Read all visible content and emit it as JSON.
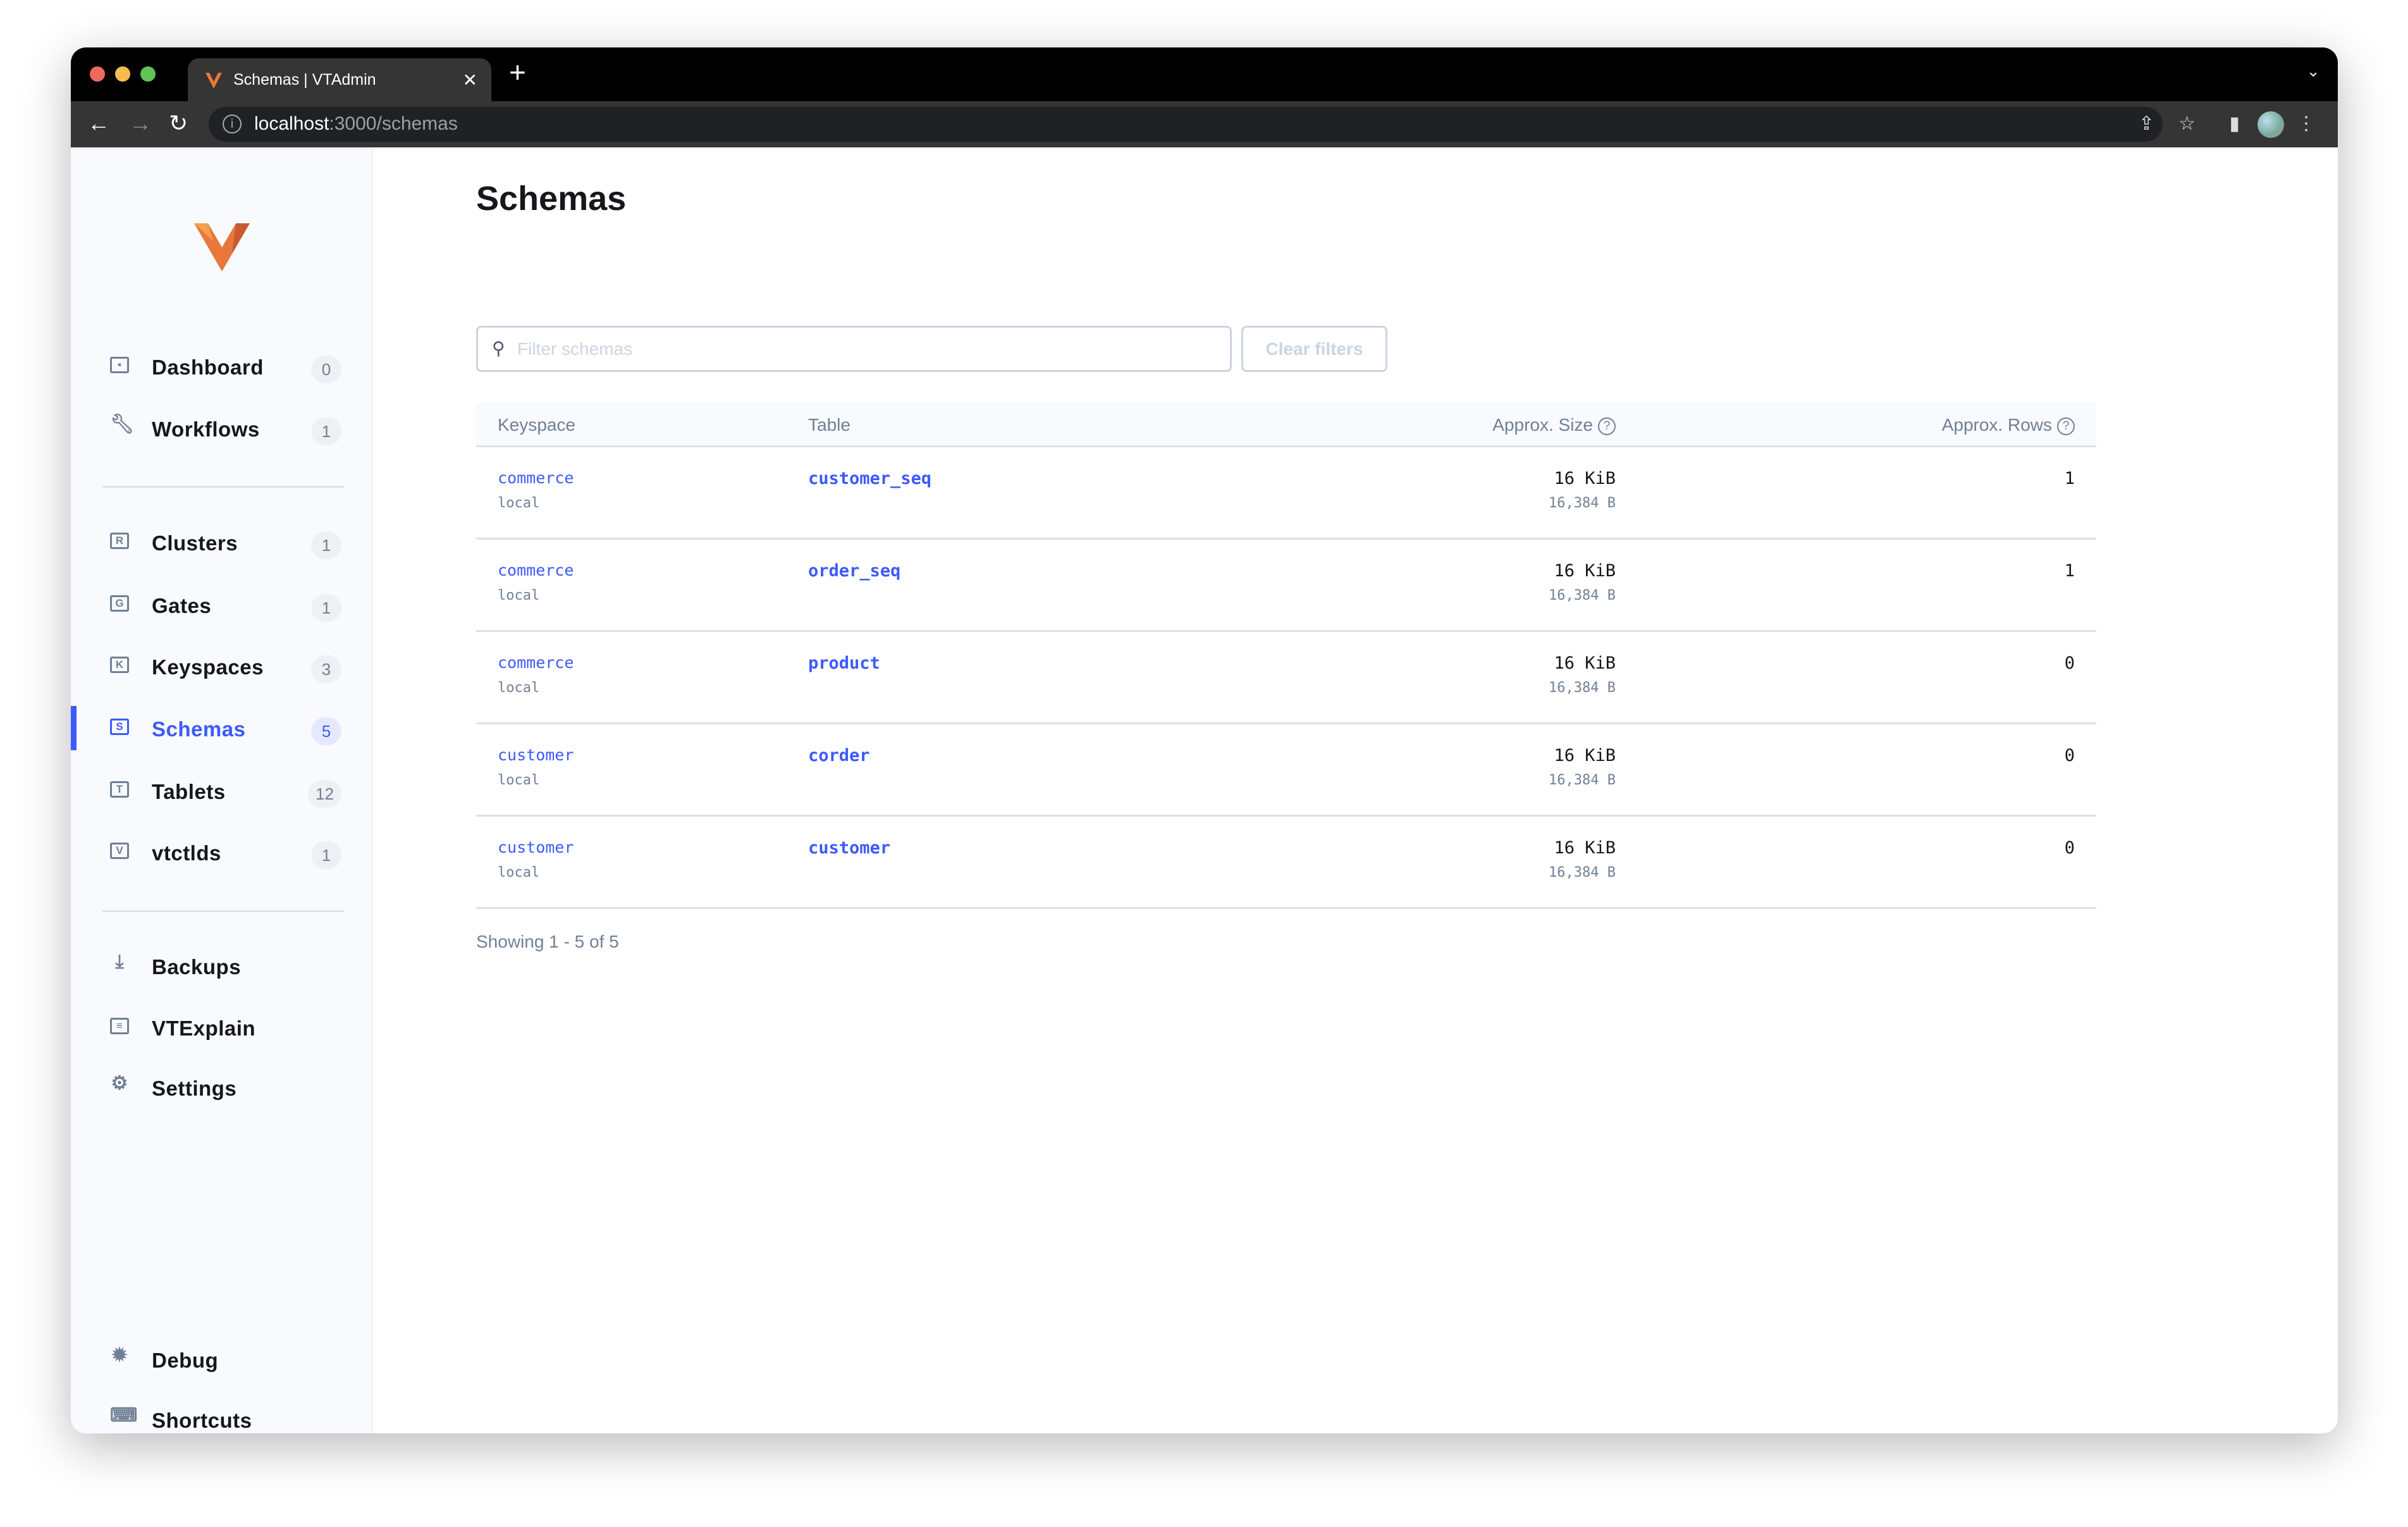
{
  "browser": {
    "tab_title": "Schemas | VTAdmin",
    "url_host": "localhost",
    "url_path": ":3000/schemas",
    "traffic_lights": [
      "#ee6a5f",
      "#f5bd4f",
      "#61c454"
    ]
  },
  "sidebar": {
    "primary": [
      {
        "label": "Dashboard",
        "count": "0",
        "icon": "dashboard-icon"
      },
      {
        "label": "Workflows",
        "count": "1",
        "icon": "wrench-icon"
      }
    ],
    "resources": [
      {
        "label": "Clusters",
        "count": "1",
        "icon": "R"
      },
      {
        "label": "Gates",
        "count": "1",
        "icon": "G"
      },
      {
        "label": "Keyspaces",
        "count": "3",
        "icon": "K"
      },
      {
        "label": "Schemas",
        "count": "5",
        "icon": "S",
        "active": true
      },
      {
        "label": "Tablets",
        "count": "12",
        "icon": "T"
      },
      {
        "label": "vtctlds",
        "count": "1",
        "icon": "V"
      }
    ],
    "tools": [
      {
        "label": "Backups",
        "icon": "download-icon"
      },
      {
        "label": "VTExplain",
        "icon": "explain-icon"
      },
      {
        "label": "Settings",
        "icon": "gear-icon"
      }
    ],
    "footer": [
      {
        "label": "Debug",
        "icon": "bug-icon"
      },
      {
        "label": "Shortcuts",
        "icon": "keyboard-icon"
      }
    ]
  },
  "main": {
    "title": "Schemas",
    "search_placeholder": "Filter schemas",
    "search_value": "",
    "clear_label": "Clear filters",
    "columns": {
      "keyspace": "Keyspace",
      "table": "Table",
      "size": "Approx. Size",
      "rows": "Approx. Rows"
    },
    "rows": [
      {
        "keyspace": "commerce",
        "cluster": "local",
        "table": "customer_seq",
        "size": "16 KiB",
        "size_bytes": "16,384 B",
        "rows": "1"
      },
      {
        "keyspace": "commerce",
        "cluster": "local",
        "table": "order_seq",
        "size": "16 KiB",
        "size_bytes": "16,384 B",
        "rows": "1"
      },
      {
        "keyspace": "commerce",
        "cluster": "local",
        "table": "product",
        "size": "16 KiB",
        "size_bytes": "16,384 B",
        "rows": "0"
      },
      {
        "keyspace": "customer",
        "cluster": "local",
        "table": "corder",
        "size": "16 KiB",
        "size_bytes": "16,384 B",
        "rows": "0"
      },
      {
        "keyspace": "customer",
        "cluster": "local",
        "table": "customer",
        "size": "16 KiB",
        "size_bytes": "16,384 B",
        "rows": "0"
      }
    ],
    "showing": "Showing 1 - 5 of 5"
  },
  "colors": {
    "accent": "#3d5afe",
    "muted": "#718096",
    "sidebar_bg": "#f8fafd",
    "logo": "#e8773a"
  }
}
